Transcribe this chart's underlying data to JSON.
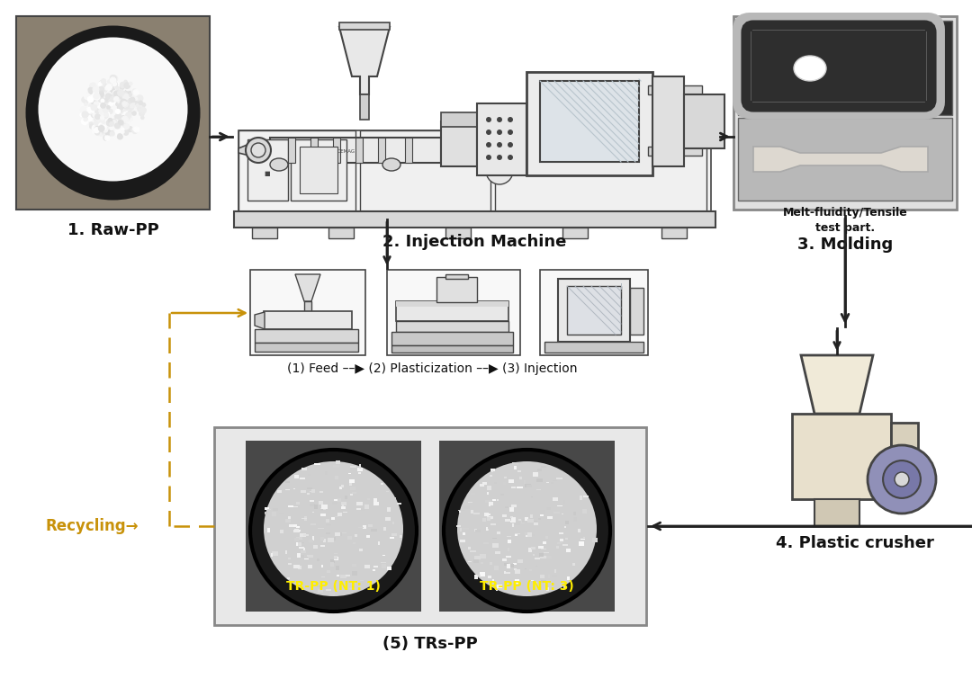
{
  "bg_color": "#ffffff",
  "labels": {
    "raw_pp": "1. Raw-PP",
    "injection": "2. Injection Machine",
    "molding": "3. Molding",
    "crusher": "4. Plastic crusher",
    "trs_pp": "(5) TRs-PP",
    "melt_tensile": "Melt-fluidity/Tensile\ntest part.",
    "recycling": "Recycling→",
    "feed_label": "(1) Feed ––▶ (2) Plasticization ––▶ (3) Injection",
    "tr_pp_1": "TR-PP (NT: 1)",
    "tr_pp_3": "TR-PP (NT: 3)"
  },
  "colors": {
    "white": "#ffffff",
    "near_white": "#f5f5f5",
    "light_gray": "#d8d8d8",
    "mid_gray": "#aaaaaa",
    "dark_gray": "#444444",
    "black": "#111111",
    "arrow_color": "#222222",
    "dashed_arrow": "#c8920a",
    "recycling_text": "#c8920a",
    "tr_pp_text": "#ffee00",
    "raw_bg": "#8a8070",
    "raw_bowl": "#1a1a1a",
    "raw_pellets": "#f2f2f2",
    "inj_bg": "#ffffff",
    "mold_top_bg": "#3a3a3a",
    "mold_runner": "#c0c0c0",
    "mold_bottom_bg": "#c8c8c8",
    "mold_specimen": "#e0ddd8",
    "crusher_body": "#e8e0cc",
    "crusher_hopper": "#f0ead8",
    "crusher_wheel": "#9090b8",
    "tr_bg": "#606060",
    "tr_bowl_dark": "#1a1a1a",
    "tr_pellets": "#e8e8e8",
    "box_bg": "#efefef",
    "box_border": "#888888"
  },
  "layout": {
    "fig_width": 10.8,
    "fig_height": 7.55
  }
}
